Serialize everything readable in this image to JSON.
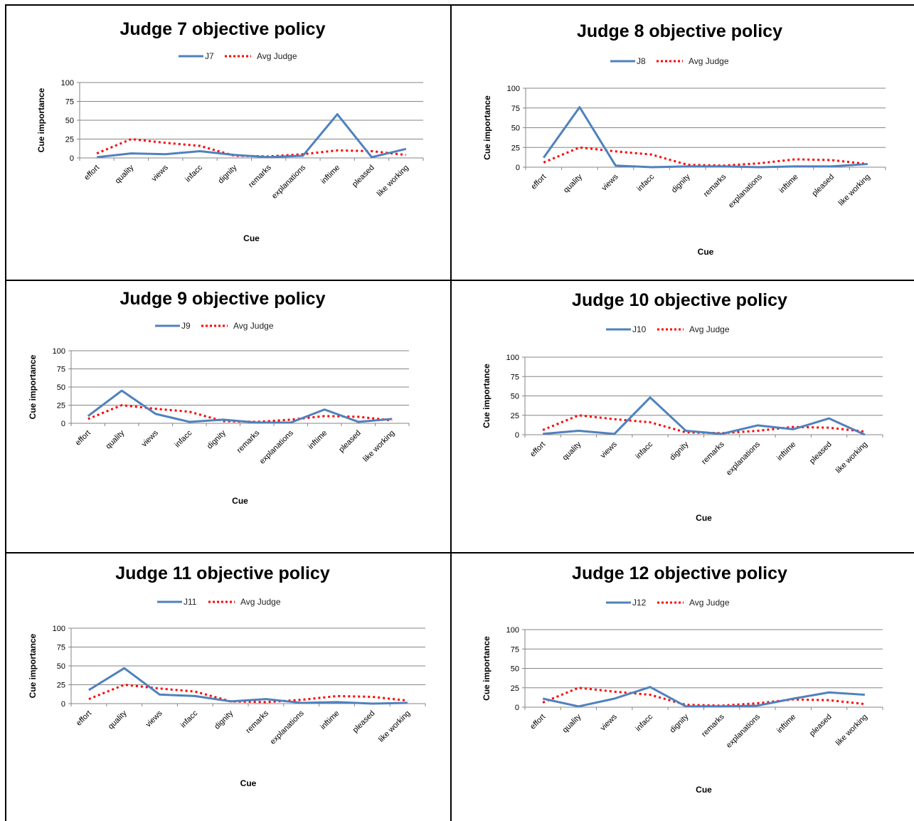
{
  "charts": {
    "cue_labels": [
      "effort",
      "quality",
      "views",
      "infacc",
      "dignity",
      "remarks",
      "explanations",
      "inftime",
      "pleased",
      "like working"
    ],
    "y_ticks": [
      "0",
      "25",
      "50",
      "75",
      "100"
    ],
    "xlabel": "Cue",
    "ylabel": "Cue importance",
    "avg_label": "Avg Judge"
  },
  "chart_data": [
    {
      "type": "line",
      "title": "Judge 7 objective policy",
      "xlabel": "Cue",
      "ylabel": "Cue importance",
      "ylim": [
        0,
        100
      ],
      "categories": [
        "effort",
        "quality",
        "views",
        "infacc",
        "dignity",
        "remarks",
        "explanations",
        "inftime",
        "pleased",
        "like working"
      ],
      "series": [
        {
          "name": "J7",
          "values": [
            1,
            6,
            5,
            9,
            4,
            1,
            3,
            58,
            1,
            12
          ]
        },
        {
          "name": "Avg Judge",
          "values": [
            6,
            25,
            20,
            16,
            3,
            2,
            5,
            10,
            9,
            4
          ]
        }
      ]
    },
    {
      "type": "line",
      "title": "Judge 8 objective policy",
      "xlabel": "Cue",
      "ylabel": "Cue importance",
      "ylim": [
        0,
        100
      ],
      "categories": [
        "effort",
        "quality",
        "views",
        "infacc",
        "dignity",
        "remarks",
        "explanations",
        "inftime",
        "pleased",
        "like working"
      ],
      "series": [
        {
          "name": "J8",
          "values": [
            12,
            76,
            2,
            0,
            1,
            1,
            0,
            1,
            1,
            4
          ]
        },
        {
          "name": "Avg Judge",
          "values": [
            6,
            25,
            20,
            16,
            3,
            2,
            5,
            10,
            9,
            4
          ]
        }
      ]
    },
    {
      "type": "line",
      "title": "Judge 9 objective policy",
      "xlabel": "Cue",
      "ylabel": "Cue importance",
      "ylim": [
        0,
        100
      ],
      "categories": [
        "effort",
        "quality",
        "views",
        "infacc",
        "dignity",
        "remarks",
        "explanations",
        "inftime",
        "pleased",
        "like working"
      ],
      "series": [
        {
          "name": "J9",
          "values": [
            10,
            45,
            13,
            2,
            5,
            1,
            1,
            19,
            2,
            6
          ]
        },
        {
          "name": "Avg Judge",
          "values": [
            6,
            25,
            20,
            16,
            3,
            2,
            5,
            10,
            9,
            4
          ]
        }
      ]
    },
    {
      "type": "line",
      "title": "Judge 10 objective policy",
      "xlabel": "Cue",
      "ylabel": "Cue importance",
      "ylim": [
        0,
        100
      ],
      "categories": [
        "effort",
        "quality",
        "views",
        "infacc",
        "dignity",
        "remarks",
        "explanations",
        "inftime",
        "pleased",
        "like working"
      ],
      "series": [
        {
          "name": "J10",
          "values": [
            1,
            5,
            1,
            48,
            5,
            1,
            12,
            7,
            21,
            0
          ]
        },
        {
          "name": "Avg Judge",
          "values": [
            6,
            25,
            20,
            16,
            3,
            2,
            5,
            10,
            9,
            4
          ]
        }
      ]
    },
    {
      "type": "line",
      "title": "Judge 11 objective policy",
      "xlabel": "Cue",
      "ylabel": "Cue importance",
      "ylim": [
        0,
        100
      ],
      "categories": [
        "effort",
        "quality",
        "views",
        "infacc",
        "dignity",
        "remarks",
        "explanations",
        "inftime",
        "pleased",
        "like working"
      ],
      "series": [
        {
          "name": "J11",
          "values": [
            18,
            47,
            12,
            10,
            3,
            6,
            1,
            2,
            0,
            1
          ]
        },
        {
          "name": "Avg Judge",
          "values": [
            6,
            25,
            20,
            16,
            3,
            2,
            5,
            10,
            9,
            4
          ]
        }
      ]
    },
    {
      "type": "line",
      "title": "Judge 12 objective policy",
      "xlabel": "Cue",
      "ylabel": "Cue importance",
      "ylim": [
        0,
        100
      ],
      "categories": [
        "effort",
        "quality",
        "views",
        "infacc",
        "dignity",
        "remarks",
        "explanations",
        "inftime",
        "pleased",
        "like working"
      ],
      "series": [
        {
          "name": "J12",
          "values": [
            11,
            1,
            11,
            26,
            1,
            1,
            2,
            11,
            19,
            16
          ]
        },
        {
          "name": "Avg Judge",
          "values": [
            6,
            25,
            20,
            16,
            3,
            2,
            5,
            10,
            9,
            4
          ]
        }
      ]
    }
  ],
  "colors": {
    "judge_line": "#4f81bd",
    "avg_line": "#ff0000",
    "grid": "#868686",
    "border": "#000000"
  }
}
